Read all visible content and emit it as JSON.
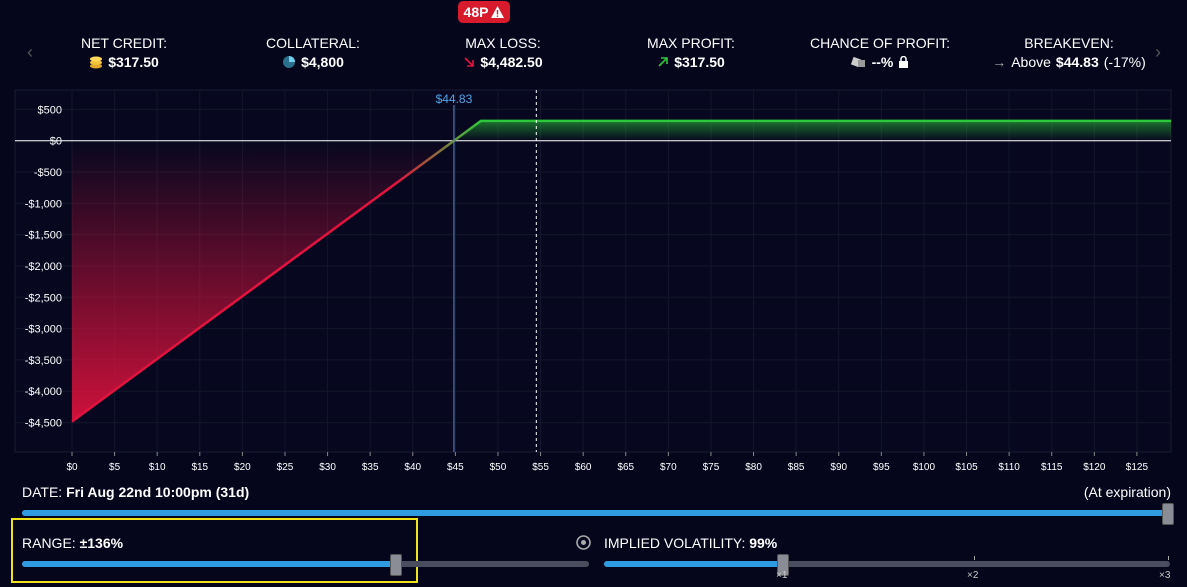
{
  "badge": "48P",
  "stats": [
    {
      "label": "NET CREDIT:",
      "value": "$317.50"
    },
    {
      "label": "COLLATERAL:",
      "value": "$4,800"
    },
    {
      "label": "MAX LOSS:",
      "value": "$4,482.50"
    },
    {
      "label": "MAX PROFIT:",
      "value": "$317.50"
    },
    {
      "label": "CHANCE OF PROFIT:",
      "value": "--%"
    },
    {
      "label": "BREAKEVEN:",
      "prefix": "Above",
      "value": "$44.83",
      "suffix": "(-17%)"
    }
  ],
  "chart_data": {
    "type": "line",
    "x": [
      0,
      44.83,
      48,
      129
    ],
    "values": [
      -4482.5,
      0,
      317.5,
      317.5
    ],
    "loss_color": "#e3123e",
    "profit_color": "#2bc93a",
    "xlim": [
      0,
      129
    ],
    "ylim": [
      -4970,
      810
    ],
    "xticks": [
      {
        "value": 0,
        "label": "$0"
      },
      {
        "value": 5,
        "label": "$5"
      },
      {
        "value": 10,
        "label": "$10"
      },
      {
        "value": 15,
        "label": "$15"
      },
      {
        "value": 20,
        "label": "$20"
      },
      {
        "value": 25,
        "label": "$25"
      },
      {
        "value": 30,
        "label": "$30"
      },
      {
        "value": 35,
        "label": "$35"
      },
      {
        "value": 40,
        "label": "$40"
      },
      {
        "value": 45,
        "label": "$45"
      },
      {
        "value": 50,
        "label": "$50"
      },
      {
        "value": 55,
        "label": "$55"
      },
      {
        "value": 60,
        "label": "$60"
      },
      {
        "value": 65,
        "label": "$65"
      },
      {
        "value": 70,
        "label": "$70"
      },
      {
        "value": 75,
        "label": "$75"
      },
      {
        "value": 80,
        "label": "$80"
      },
      {
        "value": 85,
        "label": "$85"
      },
      {
        "value": 90,
        "label": "$90"
      },
      {
        "value": 95,
        "label": "$95"
      },
      {
        "value": 100,
        "label": "$100"
      },
      {
        "value": 105,
        "label": "$105"
      },
      {
        "value": 110,
        "label": "$110"
      },
      {
        "value": 115,
        "label": "$115"
      },
      {
        "value": 120,
        "label": "$120"
      },
      {
        "value": 125,
        "label": "$125"
      }
    ],
    "yticks": [
      {
        "value": 500,
        "label": "$500"
      },
      {
        "value": 0,
        "label": "$0"
      },
      {
        "value": -500,
        "label": "-$500"
      },
      {
        "value": -1000,
        "label": "-$1,000"
      },
      {
        "value": -1500,
        "label": "-$1,500"
      },
      {
        "value": -2000,
        "label": "-$2,000"
      },
      {
        "value": -2500,
        "label": "-$2,500"
      },
      {
        "value": -3000,
        "label": "-$3,000"
      },
      {
        "value": -3500,
        "label": "-$3,500"
      },
      {
        "value": -4000,
        "label": "-$4,000"
      },
      {
        "value": -4500,
        "label": "-$4,500"
      }
    ],
    "breakeven": {
      "x": 44.83,
      "label": "$44.83"
    },
    "current_price": 54.5,
    "grid": true
  },
  "date": {
    "label": "DATE:",
    "value": "Fri Aug 22nd 10:00pm (31d)",
    "end": "(At expiration)"
  },
  "range": {
    "label": "RANGE:",
    "value": "±136%"
  },
  "iv": {
    "label": "IMPLIED VOLATILITY:",
    "value": "99%",
    "ticks": [
      "×1",
      "×2",
      "×3"
    ]
  }
}
